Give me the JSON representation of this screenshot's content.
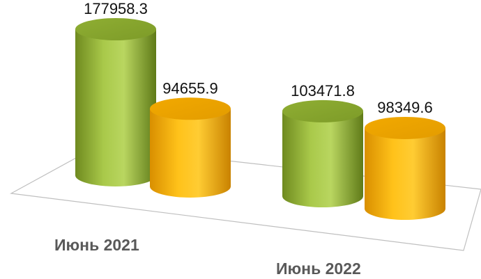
{
  "chart_data": {
    "type": "bar",
    "categories": [
      "Июнь 2021",
      "Июнь 2022"
    ],
    "series": [
      {
        "values": [
          177958.3,
          103471.8
        ],
        "color": "#9bbb3a"
      },
      {
        "values": [
          94655.9,
          98349.6
        ],
        "color": "#f5b400"
      }
    ],
    "value_labels": [
      [
        "177958.3",
        "103471.8"
      ],
      [
        "94655.9",
        "98349.6"
      ]
    ],
    "bar_shape": "cylinder",
    "grid": false,
    "legend": "none"
  }
}
